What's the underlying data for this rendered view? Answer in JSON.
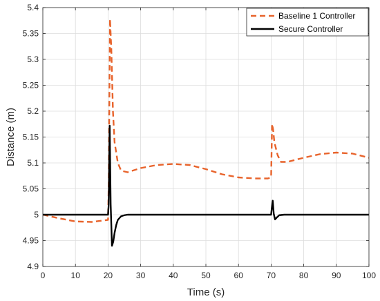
{
  "chart_data": {
    "type": "line",
    "title": "",
    "xlabel": "Time (s)",
    "ylabel": "Distance (m)",
    "xlim": [
      0,
      100
    ],
    "ylim": [
      4.9,
      5.4
    ],
    "xticks": [
      "0",
      "10",
      "20",
      "30",
      "40",
      "50",
      "60",
      "70",
      "80",
      "90",
      "100"
    ],
    "yticks": [
      "4.9",
      "4.95",
      "5",
      "5.05",
      "5.1",
      "5.15",
      "5.2",
      "5.25",
      "5.3",
      "5.35",
      "5.4"
    ],
    "grid": true,
    "legend_position": "top-right",
    "series": [
      {
        "name": "Baseline 1 Controller",
        "color": "#e8632b",
        "style": "dashed",
        "x": [
          0,
          5,
          10,
          15,
          20,
          20.2,
          20.6,
          21,
          21.5,
          22,
          23,
          24,
          26,
          30,
          35,
          40,
          45,
          50,
          55,
          60,
          65,
          69,
          70,
          70.3,
          70.6,
          71,
          72,
          73,
          75,
          80,
          85,
          90,
          95,
          100
        ],
        "y": [
          5.0,
          4.993,
          4.987,
          4.986,
          4.99,
          5.06,
          5.378,
          5.32,
          5.2,
          5.14,
          5.1,
          5.085,
          5.082,
          5.09,
          5.096,
          5.098,
          5.096,
          5.088,
          5.078,
          5.072,
          5.07,
          5.07,
          5.072,
          5.175,
          5.165,
          5.14,
          5.115,
          5.102,
          5.102,
          5.11,
          5.117,
          5.12,
          5.118,
          5.11
        ]
      },
      {
        "name": "Secure Controller",
        "color": "#000000",
        "style": "solid",
        "x": [
          0,
          10,
          20,
          20.2,
          20.5,
          20.8,
          21.2,
          21.6,
          22,
          22.5,
          23,
          24,
          25,
          26,
          30,
          40,
          50,
          60,
          70,
          70.2,
          70.5,
          70.8,
          71.2,
          71.8,
          72.5,
          74,
          80,
          90,
          100
        ],
        "y": [
          5.0,
          5.0,
          5.0,
          5.02,
          5.172,
          5.02,
          4.94,
          4.948,
          4.965,
          4.98,
          4.99,
          4.997,
          4.999,
          5.0,
          5.0,
          5.0,
          5.0,
          5.0,
          5.0,
          5.012,
          5.027,
          5.002,
          4.991,
          4.995,
          4.999,
          5.0,
          5.0,
          5.0,
          5.0
        ]
      }
    ]
  }
}
